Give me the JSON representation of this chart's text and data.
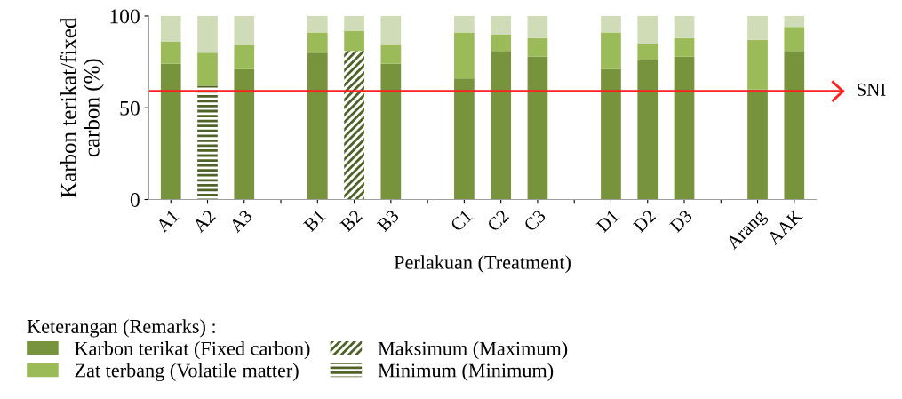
{
  "chart_data": {
    "type": "bar",
    "stacked": true,
    "categories": [
      "A1",
      "A2",
      "A3",
      null,
      "B1",
      "B2",
      "B3",
      null,
      "C1",
      "C2",
      "C3",
      null,
      "D1",
      "D2",
      "D3",
      null,
      "Arang",
      "AAK"
    ],
    "series": [
      {
        "name": "Karbon terikat (Fixed carbon)",
        "color": "#77933c",
        "values": [
          74,
          null,
          71,
          null,
          80,
          null,
          74,
          null,
          66,
          81,
          78,
          null,
          71,
          76,
          78,
          null,
          60,
          81
        ]
      },
      {
        "name": "Maksimum (Maximum)",
        "color": "#4f6228",
        "line_style": "dashed",
        "values": [
          null,
          null,
          null,
          null,
          null,
          81,
          null,
          null,
          null,
          null,
          null,
          null,
          null,
          null,
          null,
          null,
          null,
          null
        ]
      },
      {
        "name": "Minimum (Minimum)",
        "color": "#4f6228",
        "line_style": "solid",
        "values": [
          null,
          62,
          null,
          null,
          null,
          null,
          null,
          null,
          null,
          null,
          null,
          null,
          null,
          null,
          null,
          null,
          null,
          null
        ]
      },
      {
        "name": "Zat terbang (Volatile matter)",
        "color": "#9bbb59",
        "values": [
          12,
          18,
          13,
          null,
          11,
          11,
          10,
          null,
          25,
          9,
          10,
          null,
          20,
          9,
          10,
          null,
          27,
          13
        ]
      },
      {
        "color": "#d0dcb8",
        "values": [
          14,
          20,
          16,
          null,
          9,
          8,
          16,
          null,
          9,
          10,
          12,
          null,
          9,
          15,
          12,
          null,
          13,
          6
        ]
      }
    ],
    "ylim": [
      0,
      100
    ],
    "yticks": [
      0,
      50,
      100
    ],
    "ylabel": "Karbon terikat/fixed carbon (%)",
    "xlabel": "Perlakuan (Treatment)",
    "legend_title": "Keterangan (Remarks) :",
    "legend": "bottom",
    "ref_lines": [
      {
        "axis": "y",
        "value": 59,
        "label": "SNI",
        "color": "#ff2020"
      }
    ],
    "grid": false
  }
}
